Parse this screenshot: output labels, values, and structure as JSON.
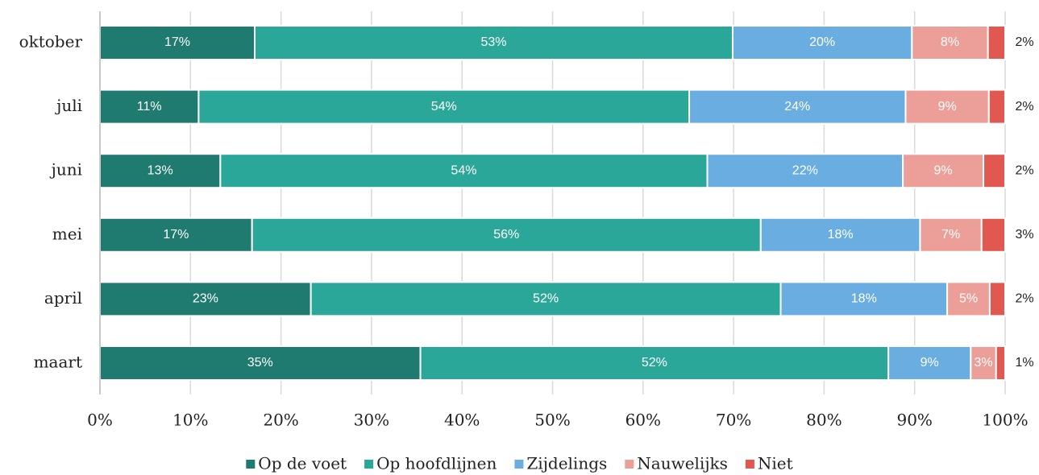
{
  "chart_data": {
    "type": "stacked-barh",
    "categories": [
      "oktober",
      "juli",
      "juni",
      "mei",
      "april",
      "maart"
    ],
    "series": [
      {
        "name": "Op de voet",
        "color": "#1f7b70",
        "values": [
          17.1,
          10.9,
          13.3,
          16.8,
          23.3,
          35.4
        ],
        "value_labels": [
          "17%",
          "11%",
          "13%",
          "17%",
          "23%",
          "35%"
        ]
      },
      {
        "name": "Op hoofdlijnen",
        "color": "#2ba79a",
        "values": [
          52.8,
          54.2,
          53.8,
          56.2,
          51.9,
          51.7
        ],
        "value_labels": [
          "53%",
          "54%",
          "54%",
          "56%",
          "52%",
          "52%"
        ]
      },
      {
        "name": "Zijdelings",
        "color": "#6aade0",
        "values": [
          19.8,
          23.9,
          21.6,
          17.6,
          18.4,
          9.1
        ],
        "value_labels": [
          "20%",
          "24%",
          "22%",
          "18%",
          "18%",
          "9%"
        ]
      },
      {
        "name": "Nauwelijks",
        "color": "#eb9f98",
        "values": [
          8.4,
          9.2,
          8.9,
          6.8,
          4.7,
          2.8
        ],
        "value_labels": [
          "8%",
          "9%",
          "9%",
          "7%",
          "5%",
          "3%"
        ]
      },
      {
        "name": "Niet",
        "color": "#e0584f",
        "values": [
          1.9,
          1.8,
          2.4,
          2.6,
          1.7,
          1.0
        ],
        "value_labels": [
          "2%",
          "2%",
          "2%",
          "3%",
          "2%",
          "1%"
        ]
      }
    ],
    "xlim": [
      0,
      100
    ],
    "xticks": [
      {
        "value": 0,
        "label": "0%"
      },
      {
        "value": 10,
        "label": "10%"
      },
      {
        "value": 20,
        "label": "20%"
      },
      {
        "value": 30,
        "label": "30%"
      },
      {
        "value": 40,
        "label": "40%"
      },
      {
        "value": 50,
        "label": "50%"
      },
      {
        "value": 60,
        "label": "60%"
      },
      {
        "value": 70,
        "label": "70%"
      },
      {
        "value": 80,
        "label": "80%"
      },
      {
        "value": 90,
        "label": "90%"
      },
      {
        "value": 100,
        "label": "100%"
      }
    ],
    "grid": true,
    "legend": "bottom"
  }
}
